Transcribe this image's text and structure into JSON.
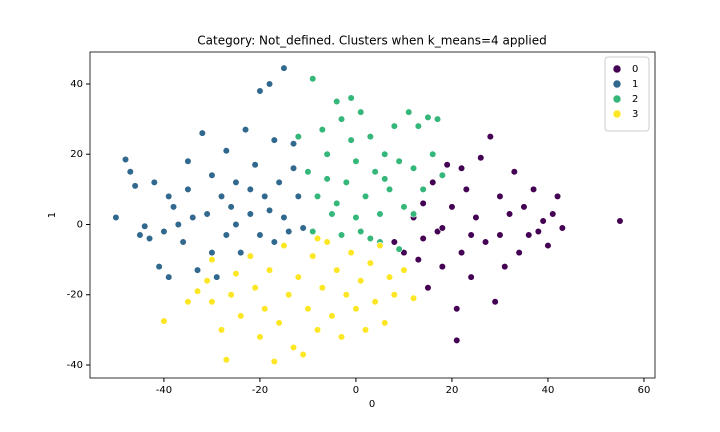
{
  "chart_data": {
    "type": "scatter",
    "title": "Category: Not_defined. Clusters when k_means=4 applied",
    "x_label": "0",
    "y_label": "1",
    "xlim": [
      -55.4,
      62.3
    ],
    "ylim": [
      -43.7,
      49.1
    ],
    "xticks": [
      -40,
      -20,
      0,
      20,
      40,
      60
    ],
    "yticks": [
      -40,
      -20,
      0,
      20,
      40
    ],
    "grid": false,
    "legend": "upper right",
    "series": [
      {
        "name": "0",
        "color": "#440154",
        "x": [
          8,
          10,
          12,
          13,
          14,
          15,
          16,
          17,
          18,
          19,
          20,
          21,
          21,
          22,
          23,
          24,
          25,
          26,
          27,
          28,
          29,
          30,
          31,
          32,
          33,
          34,
          35,
          36,
          37,
          38,
          39,
          40,
          42,
          43,
          55,
          41,
          24,
          18,
          30,
          14,
          22
        ],
        "y": [
          -5,
          -8,
          2,
          -10,
          6,
          -18,
          12,
          -2,
          -12,
          17,
          5,
          -33,
          -24,
          -8,
          10,
          -15,
          2,
          19,
          -5,
          25,
          -22,
          8,
          -12,
          3,
          15,
          -8,
          5,
          -3,
          10,
          -2,
          1,
          -6,
          8,
          -1,
          1,
          3,
          -3,
          -1,
          -3,
          -4,
          16
        ]
      },
      {
        "name": "1",
        "color": "#31688e",
        "x": [
          -50,
          -48,
          -47,
          -46,
          -45,
          -44,
          -43,
          -42,
          -41,
          -40,
          -39,
          -39,
          -38,
          -37,
          -36,
          -35,
          -35,
          -34,
          -33,
          -32,
          -31,
          -30,
          -30,
          -29,
          -28,
          -27,
          -27,
          -26,
          -25,
          -24,
          -23,
          -22,
          -21,
          -20,
          -20,
          -19,
          -18,
          -17,
          -17,
          -16,
          -15,
          -15,
          -14,
          -13,
          -12,
          -11,
          -13,
          -22,
          -25,
          -18
        ],
        "y": [
          2,
          18.5,
          15,
          11,
          -3,
          -0.5,
          -4,
          12,
          -12,
          -2,
          -15,
          8,
          5,
          0,
          -5,
          18,
          10,
          2,
          -13,
          26,
          3,
          -8,
          14,
          -15,
          8,
          21,
          -3,
          5,
          12,
          -8,
          27,
          3,
          17,
          38,
          -3,
          8,
          40,
          24,
          -5,
          12,
          44.5,
          2,
          -2,
          23,
          8,
          -1,
          16,
          10,
          0,
          4
        ]
      },
      {
        "name": "2",
        "color": "#35b779",
        "x": [
          -12,
          -10,
          -9,
          -8,
          -7,
          -6,
          -5,
          -4,
          -3,
          -3,
          -2,
          -1,
          0,
          1,
          1,
          2,
          3,
          4,
          5,
          5,
          6,
          7,
          8,
          9,
          10,
          11,
          12,
          13,
          14,
          15,
          16,
          17,
          18,
          -9,
          -4,
          0,
          -6,
          3,
          9,
          12,
          -1,
          6
        ],
        "y": [
          25,
          15,
          41.5,
          8,
          27,
          20,
          3,
          35,
          30,
          -3,
          12,
          36,
          18,
          -2,
          32,
          8,
          25,
          15,
          -5,
          3,
          20,
          10,
          28,
          -7,
          5,
          32,
          16,
          28,
          10,
          30.5,
          20,
          30,
          14,
          -2,
          6,
          2,
          13,
          -4,
          18,
          3,
          24,
          13
        ]
      },
      {
        "name": "3",
        "color": "#fde725",
        "x": [
          -40,
          -35,
          -33,
          -31,
          -30,
          -28,
          -27,
          -26,
          -25,
          -24,
          -22,
          -21,
          -20,
          -19,
          -18,
          -17,
          -16,
          -15,
          -14,
          -13,
          -12,
          -11,
          -10,
          -9,
          -8,
          -7,
          -6,
          -5,
          -4,
          -3,
          -2,
          -1,
          0,
          1,
          2,
          3,
          4,
          5,
          6,
          7,
          8,
          10,
          12,
          -8,
          -30
        ],
        "y": [
          -27.5,
          -22,
          -19,
          -16,
          -22,
          -30,
          -38.5,
          -20,
          -14,
          -26,
          -9,
          -18,
          -32,
          -24,
          -13,
          -39,
          -28,
          -6,
          -20,
          -35,
          -15,
          -37,
          -24,
          -9,
          -30,
          -18,
          -5,
          -26,
          -13,
          -32,
          -20,
          -8,
          -24,
          -16,
          -30,
          -11,
          -22,
          -6,
          -28,
          -15,
          -20,
          -13,
          -21,
          -4,
          -10
        ]
      }
    ]
  }
}
